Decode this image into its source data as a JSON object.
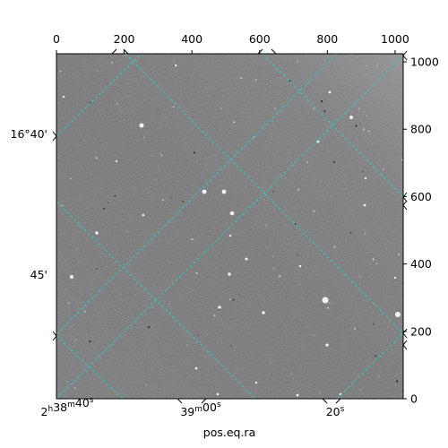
{
  "chart_data": {
    "type": "heatmap",
    "title": "",
    "image": "grayscale astronomical sky image with cyan dashed RA/Dec coordinate grid",
    "xlabel": "pos.eq.ra",
    "ylabel": "",
    "pixel_x": {
      "range": [
        0,
        1024
      ],
      "ticks": [
        "0",
        "200",
        "400",
        "600",
        "800",
        "1000"
      ],
      "tick_values": [
        0,
        200,
        400,
        600,
        800,
        1000
      ]
    },
    "pixel_y": {
      "range": [
        0,
        1024
      ],
      "ticks": [
        "0",
        "200",
        "400",
        "600",
        "800",
        "1000"
      ],
      "tick_values": [
        0,
        200,
        400,
        600,
        800,
        1000
      ]
    },
    "ra_ticks": [
      {
        "label_main": "2",
        "sup1": "h",
        "mid1": "38",
        "sup2": "m",
        "mid2": "40",
        "sup3": "s"
      },
      {
        "label_main": "",
        "sup1": "",
        "mid1": "39",
        "sup2": "m",
        "mid2": "00",
        "sup3": "s"
      },
      {
        "label_main": "",
        "sup1": "",
        "mid1": "",
        "sup2": "",
        "mid2": "20",
        "sup3": "s"
      }
    ],
    "dec_ticks": [
      "16°40'",
      "45'"
    ],
    "grid_color": "#2ad0d0",
    "grid": true,
    "colormap": "gray"
  }
}
